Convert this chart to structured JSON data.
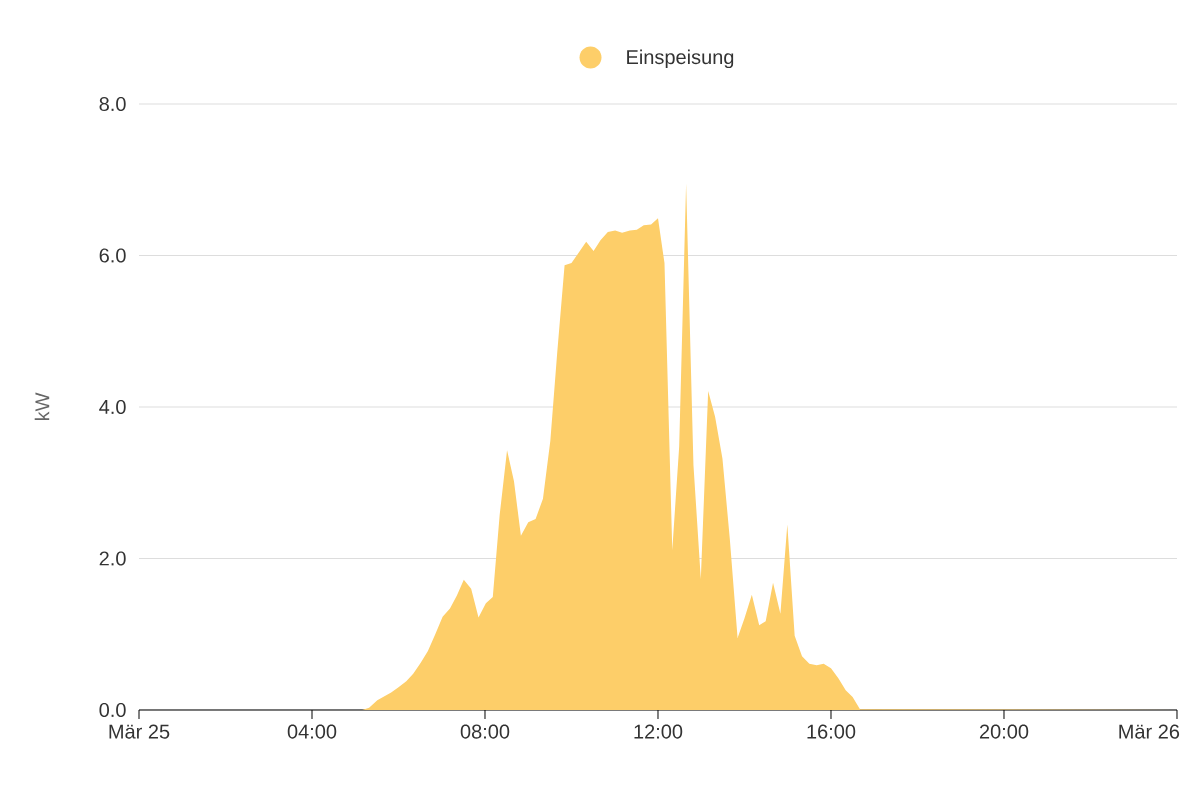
{
  "chart_data": {
    "type": "area",
    "ylabel": "kW",
    "legend": "top",
    "grid": "y",
    "xlim": [
      0,
      24
    ],
    "ylim": [
      0,
      8
    ],
    "xticks": [
      {
        "value": 0,
        "label": "Mär 25"
      },
      {
        "value": 4,
        "label": "04:00"
      },
      {
        "value": 8,
        "label": "08:00"
      },
      {
        "value": 12,
        "label": "12:00"
      },
      {
        "value": 16,
        "label": "16:00"
      },
      {
        "value": 20,
        "label": "20:00"
      },
      {
        "value": 24,
        "label": "Mär 26"
      }
    ],
    "yticks": [
      {
        "value": 0,
        "label": "0.0"
      },
      {
        "value": 2,
        "label": "2.0"
      },
      {
        "value": 4,
        "label": "4.0"
      },
      {
        "value": 6,
        "label": "6.0"
      },
      {
        "value": 8,
        "label": "8.0"
      }
    ],
    "series": [
      {
        "name": "Einspeisung",
        "color": "#fdce69",
        "x": [
          0,
          5.16,
          5.32,
          5.51,
          5.83,
          6.0,
          6.18,
          6.34,
          6.51,
          6.68,
          6.85,
          7.02,
          7.19,
          7.35,
          7.51,
          7.68,
          7.85,
          8.02,
          8.18,
          8.34,
          8.51,
          8.67,
          8.83,
          9.0,
          9.17,
          9.34,
          9.51,
          9.67,
          9.84,
          10.0,
          10.17,
          10.34,
          10.51,
          10.67,
          10.84,
          11.01,
          11.17,
          11.35,
          11.51,
          11.67,
          11.84,
          12.0,
          12.15,
          12.33,
          12.49,
          12.65,
          12.82,
          12.99,
          13.16,
          13.32,
          13.49,
          13.66,
          13.84,
          14.0,
          14.17,
          14.34,
          14.49,
          14.66,
          14.83,
          14.99,
          15.16,
          15.33,
          15.5,
          15.67,
          15.83,
          16.0,
          16.17,
          16.34,
          16.5,
          16.67,
          24
        ],
        "values": [
          0,
          0,
          0.03,
          0.13,
          0.23,
          0.3,
          0.38,
          0.48,
          0.62,
          0.78,
          1.0,
          1.23,
          1.34,
          1.51,
          1.72,
          1.6,
          1.22,
          1.41,
          1.49,
          2.58,
          3.43,
          3.02,
          2.3,
          2.48,
          2.52,
          2.79,
          3.55,
          4.72,
          5.87,
          5.9,
          6.04,
          6.18,
          6.06,
          6.2,
          6.31,
          6.33,
          6.3,
          6.33,
          6.34,
          6.4,
          6.41,
          6.49,
          5.9,
          2.11,
          3.48,
          6.95,
          3.23,
          1.73,
          4.21,
          3.87,
          3.32,
          2.26,
          0.95,
          1.21,
          1.52,
          1.12,
          1.17,
          1.68,
          1.27,
          2.45,
          0.98,
          0.71,
          0.61,
          0.59,
          0.61,
          0.55,
          0.42,
          0.26,
          0.17,
          0.01,
          0
        ]
      }
    ]
  }
}
